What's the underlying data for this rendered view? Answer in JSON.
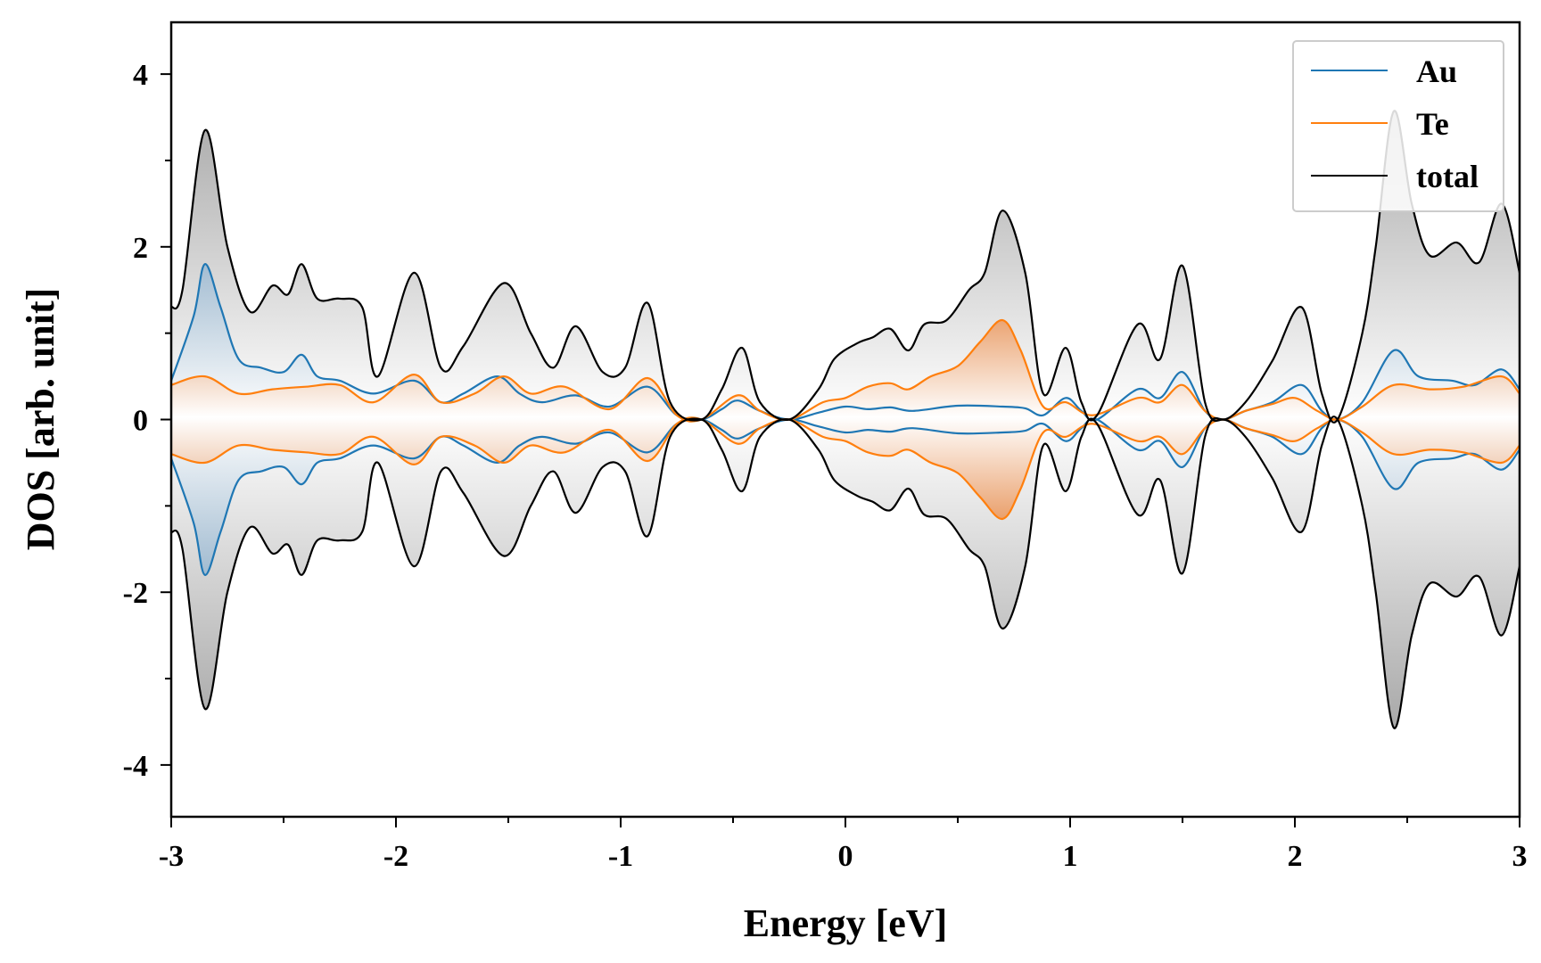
{
  "chart_data": {
    "type": "area",
    "xlabel": "Energy [eV]",
    "ylabel": "DOS [arb. unit]",
    "xlim": [
      -3,
      3
    ],
    "ylim": [
      -4.6,
      4.6
    ],
    "xticks": [
      -3,
      -2,
      -1,
      0,
      1,
      2,
      3
    ],
    "xtick_labels": [
      "-3",
      "-2",
      "-1",
      "0",
      "1",
      "2",
      "3"
    ],
    "yticks": [
      -4,
      -2,
      0,
      2,
      4
    ],
    "ytick_labels": [
      "-4",
      "-2",
      "0",
      "2",
      "4"
    ],
    "mirrored": true,
    "grid": false,
    "legend_position": "top-right",
    "series": [
      {
        "name": "Au",
        "color": "#1f77b4",
        "x": [
          -3.0,
          -2.9,
          -2.85,
          -2.78,
          -2.7,
          -2.6,
          -2.5,
          -2.42,
          -2.35,
          -2.25,
          -2.1,
          -1.92,
          -1.8,
          -1.7,
          -1.55,
          -1.45,
          -1.35,
          -1.2,
          -1.05,
          -0.88,
          -0.75,
          -0.64,
          -0.55,
          -0.48,
          -0.38,
          -0.25,
          -0.12,
          0.0,
          0.1,
          0.2,
          0.3,
          0.5,
          0.7,
          0.8,
          0.88,
          0.98,
          1.05,
          1.12,
          1.3,
          1.4,
          1.5,
          1.6,
          1.68,
          1.78,
          1.9,
          2.03,
          2.12,
          2.19,
          2.3,
          2.44,
          2.55,
          2.7,
          2.8,
          2.92,
          3.0
        ],
        "y": [
          0.45,
          1.2,
          1.8,
          1.3,
          0.7,
          0.6,
          0.55,
          0.75,
          0.5,
          0.45,
          0.3,
          0.45,
          0.2,
          0.3,
          0.5,
          0.3,
          0.2,
          0.28,
          0.15,
          0.38,
          0.05,
          0.0,
          0.12,
          0.22,
          0.1,
          0.0,
          0.08,
          0.15,
          0.12,
          0.14,
          0.1,
          0.16,
          0.15,
          0.13,
          0.05,
          0.25,
          0.1,
          0.0,
          0.35,
          0.25,
          0.55,
          0.1,
          0.0,
          0.1,
          0.2,
          0.4,
          0.1,
          0.0,
          0.2,
          0.8,
          0.5,
          0.45,
          0.4,
          0.58,
          0.35
        ],
        "mirrored_values": [
          -0.45,
          -1.2,
          -1.8,
          -1.3,
          -0.7,
          -0.6,
          -0.55,
          -0.75,
          -0.5,
          -0.45,
          -0.3,
          -0.45,
          -0.2,
          -0.3,
          -0.5,
          -0.3,
          -0.2,
          -0.28,
          -0.15,
          -0.38,
          -0.05,
          0.0,
          -0.12,
          -0.22,
          -0.1,
          0.0,
          -0.08,
          -0.15,
          -0.12,
          -0.14,
          -0.1,
          -0.16,
          -0.15,
          -0.13,
          -0.05,
          -0.25,
          -0.1,
          0.0,
          -0.35,
          -0.25,
          -0.55,
          -0.1,
          0.0,
          -0.1,
          -0.2,
          -0.4,
          -0.1,
          0.0,
          -0.2,
          -0.8,
          -0.5,
          -0.45,
          -0.4,
          -0.58,
          -0.35
        ]
      },
      {
        "name": "Te",
        "color": "#ff7f0e",
        "x": [
          -3.0,
          -2.85,
          -2.7,
          -2.55,
          -2.4,
          -2.25,
          -2.1,
          -1.92,
          -1.8,
          -1.65,
          -1.52,
          -1.4,
          -1.25,
          -1.05,
          -0.88,
          -0.75,
          -0.64,
          -0.48,
          -0.38,
          -0.25,
          -0.1,
          0.0,
          0.1,
          0.2,
          0.28,
          0.38,
          0.5,
          0.6,
          0.7,
          0.78,
          0.88,
          0.98,
          1.1,
          1.3,
          1.4,
          1.5,
          1.6,
          1.68,
          1.78,
          1.9,
          2.0,
          2.1,
          2.19,
          2.3,
          2.44,
          2.6,
          2.75,
          2.92,
          3.0
        ],
        "y": [
          0.4,
          0.5,
          0.3,
          0.35,
          0.38,
          0.4,
          0.2,
          0.52,
          0.2,
          0.3,
          0.5,
          0.3,
          0.38,
          0.12,
          0.48,
          0.05,
          0.0,
          0.28,
          0.1,
          0.0,
          0.2,
          0.25,
          0.38,
          0.42,
          0.35,
          0.5,
          0.62,
          0.9,
          1.15,
          0.8,
          0.15,
          0.2,
          0.05,
          0.25,
          0.2,
          0.4,
          0.1,
          0.0,
          0.1,
          0.18,
          0.25,
          0.1,
          0.0,
          0.15,
          0.4,
          0.35,
          0.38,
          0.5,
          0.3
        ],
        "mirrored_values": [
          -0.4,
          -0.5,
          -0.3,
          -0.35,
          -0.38,
          -0.4,
          -0.2,
          -0.52,
          -0.2,
          -0.3,
          -0.5,
          -0.3,
          -0.38,
          -0.12,
          -0.48,
          -0.05,
          0.0,
          -0.28,
          -0.1,
          0.0,
          -0.2,
          -0.25,
          -0.38,
          -0.42,
          -0.35,
          -0.5,
          -0.62,
          -0.9,
          -1.15,
          -0.8,
          -0.15,
          -0.2,
          -0.05,
          -0.25,
          -0.2,
          -0.4,
          -0.1,
          0.0,
          -0.1,
          -0.18,
          -0.25,
          -0.1,
          0.0,
          -0.15,
          -0.4,
          -0.35,
          -0.38,
          -0.5,
          -0.3
        ]
      },
      {
        "name": "total",
        "color": "#000000",
        "x": [
          -3.0,
          -2.95,
          -2.85,
          -2.75,
          -2.65,
          -2.55,
          -2.48,
          -2.42,
          -2.35,
          -2.25,
          -2.15,
          -2.08,
          -1.92,
          -1.8,
          -1.7,
          -1.52,
          -1.4,
          -1.3,
          -1.2,
          -1.08,
          -0.98,
          -0.88,
          -0.78,
          -0.64,
          -0.55,
          -0.46,
          -0.38,
          -0.25,
          -0.12,
          -0.05,
          0.05,
          0.12,
          0.2,
          0.28,
          0.35,
          0.45,
          0.55,
          0.62,
          0.7,
          0.8,
          0.88,
          0.98,
          1.05,
          1.12,
          1.3,
          1.4,
          1.5,
          1.6,
          1.68,
          1.78,
          1.9,
          2.03,
          2.12,
          2.19,
          2.3,
          2.36,
          2.44,
          2.52,
          2.6,
          2.72,
          2.82,
          2.92,
          3.0
        ],
        "y": [
          1.3,
          1.5,
          3.35,
          2.0,
          1.25,
          1.55,
          1.45,
          1.8,
          1.4,
          1.4,
          1.3,
          0.5,
          1.7,
          0.6,
          0.85,
          1.58,
          1.0,
          0.6,
          1.08,
          0.55,
          0.6,
          1.35,
          0.2,
          0.0,
          0.35,
          0.83,
          0.2,
          0.0,
          0.35,
          0.7,
          0.88,
          0.95,
          1.05,
          0.8,
          1.1,
          1.15,
          1.5,
          1.7,
          2.42,
          1.7,
          0.3,
          0.83,
          0.2,
          0.05,
          1.1,
          0.7,
          1.78,
          0.2,
          0.0,
          0.2,
          0.68,
          1.3,
          0.3,
          0.0,
          1.0,
          2.0,
          3.57,
          2.5,
          1.9,
          2.05,
          1.82,
          2.5,
          1.7
        ],
        "mirrored_values": [
          -1.3,
          -1.5,
          -3.35,
          -2.0,
          -1.25,
          -1.55,
          -1.45,
          -1.8,
          -1.4,
          -1.4,
          -1.3,
          -0.5,
          -1.7,
          -0.6,
          -0.85,
          -1.58,
          -1.0,
          -0.6,
          -1.08,
          -0.55,
          -0.6,
          -1.35,
          -0.2,
          0.0,
          -0.35,
          -0.83,
          -0.2,
          0.0,
          -0.35,
          -0.7,
          -0.88,
          -0.95,
          -1.05,
          -0.8,
          -1.1,
          -1.15,
          -1.5,
          -1.7,
          -2.42,
          -1.7,
          -0.3,
          -0.83,
          -0.2,
          -0.05,
          -1.1,
          -0.7,
          -1.78,
          -0.2,
          0.0,
          -0.2,
          -0.68,
          -1.3,
          -0.3,
          0.0,
          -1.0,
          -2.0,
          -3.57,
          -2.5,
          -1.9,
          -2.05,
          -1.82,
          -2.5,
          -1.7
        ]
      }
    ]
  }
}
